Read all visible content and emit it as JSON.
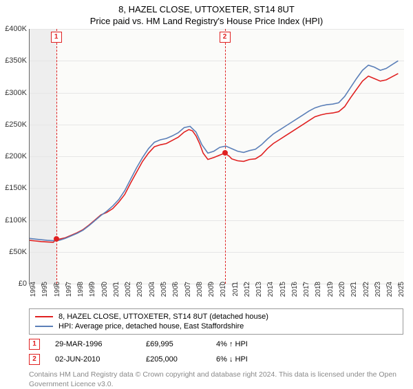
{
  "title": "8, HAZEL CLOSE, UTTOXETER, ST14 8UT",
  "subtitle": "Price paid vs. HM Land Registry's House Price Index (HPI)",
  "chart": {
    "type": "line",
    "background_color": "#fbfbf9",
    "grid_color": "#e6e6e6",
    "axis_color": "#666666",
    "shade_color": "#eeeeee",
    "x_years": [
      1994,
      1995,
      1996,
      1997,
      1998,
      1999,
      2000,
      2001,
      2002,
      2003,
      2004,
      2005,
      2006,
      2007,
      2008,
      2009,
      2010,
      2011,
      2012,
      2013,
      2014,
      2015,
      2016,
      2017,
      2018,
      2019,
      2020,
      2021,
      2022,
      2023,
      2024,
      2025
    ],
    "xlim": [
      1994,
      2025.5
    ],
    "ylim": [
      0,
      400000
    ],
    "ytick_step": 50000,
    "yticks": [
      "£0",
      "£50K",
      "£100K",
      "£150K",
      "£200K",
      "£250K",
      "£300K",
      "£350K",
      "£400K"
    ],
    "label_fontsize": 11,
    "tick_fontsize": 10,
    "series": [
      {
        "name": "price_paid",
        "color": "#e02020",
        "width": 1.6,
        "legend": "8, HAZEL CLOSE, UTTOXETER, ST14 8UT (detached house)",
        "points": [
          [
            1994.0,
            68000
          ],
          [
            1994.5,
            67000
          ],
          [
            1995.0,
            66000
          ],
          [
            1995.5,
            65500
          ],
          [
            1996.0,
            65000
          ],
          [
            1996.24,
            69995
          ],
          [
            1996.5,
            70000
          ],
          [
            1997.0,
            72000
          ],
          [
            1997.5,
            76000
          ],
          [
            1998.0,
            80000
          ],
          [
            1998.5,
            85000
          ],
          [
            1999.0,
            92000
          ],
          [
            1999.5,
            100000
          ],
          [
            2000.0,
            108000
          ],
          [
            2000.5,
            112000
          ],
          [
            2001.0,
            118000
          ],
          [
            2001.5,
            128000
          ],
          [
            2002.0,
            140000
          ],
          [
            2002.5,
            158000
          ],
          [
            2003.0,
            175000
          ],
          [
            2003.5,
            192000
          ],
          [
            2004.0,
            205000
          ],
          [
            2004.5,
            215000
          ],
          [
            2005.0,
            218000
          ],
          [
            2005.5,
            220000
          ],
          [
            2006.0,
            225000
          ],
          [
            2006.5,
            230000
          ],
          [
            2007.0,
            238000
          ],
          [
            2007.4,
            242000
          ],
          [
            2007.7,
            240000
          ],
          [
            2008.0,
            232000
          ],
          [
            2008.3,
            220000
          ],
          [
            2008.6,
            205000
          ],
          [
            2009.0,
            195000
          ],
          [
            2009.5,
            198000
          ],
          [
            2010.0,
            202000
          ],
          [
            2010.42,
            205000
          ],
          [
            2010.8,
            200000
          ],
          [
            2011.0,
            196000
          ],
          [
            2011.5,
            193000
          ],
          [
            2012.0,
            192000
          ],
          [
            2012.5,
            195000
          ],
          [
            2013.0,
            196000
          ],
          [
            2013.5,
            202000
          ],
          [
            2014.0,
            212000
          ],
          [
            2014.5,
            220000
          ],
          [
            2015.0,
            226000
          ],
          [
            2015.5,
            232000
          ],
          [
            2016.0,
            238000
          ],
          [
            2016.5,
            244000
          ],
          [
            2017.0,
            250000
          ],
          [
            2017.5,
            256000
          ],
          [
            2018.0,
            262000
          ],
          [
            2018.5,
            265000
          ],
          [
            2019.0,
            267000
          ],
          [
            2019.5,
            268000
          ],
          [
            2020.0,
            270000
          ],
          [
            2020.5,
            278000
          ],
          [
            2021.0,
            292000
          ],
          [
            2021.5,
            305000
          ],
          [
            2022.0,
            318000
          ],
          [
            2022.5,
            326000
          ],
          [
            2023.0,
            322000
          ],
          [
            2023.5,
            318000
          ],
          [
            2024.0,
            320000
          ],
          [
            2024.5,
            325000
          ],
          [
            2025.0,
            330000
          ]
        ]
      },
      {
        "name": "hpi",
        "color": "#5b7fb8",
        "width": 1.6,
        "legend": "HPI: Average price, detached house, East Staffordshire",
        "points": [
          [
            1994.0,
            71000
          ],
          [
            1994.5,
            70000
          ],
          [
            1995.0,
            69000
          ],
          [
            1995.5,
            68000
          ],
          [
            1996.0,
            67500
          ],
          [
            1996.5,
            68000
          ],
          [
            1997.0,
            71000
          ],
          [
            1997.5,
            75000
          ],
          [
            1998.0,
            79000
          ],
          [
            1998.5,
            84000
          ],
          [
            1999.0,
            91000
          ],
          [
            1999.5,
            99000
          ],
          [
            2000.0,
            107000
          ],
          [
            2000.5,
            114000
          ],
          [
            2001.0,
            122000
          ],
          [
            2001.5,
            132000
          ],
          [
            2002.0,
            146000
          ],
          [
            2002.5,
            164000
          ],
          [
            2003.0,
            182000
          ],
          [
            2003.5,
            198000
          ],
          [
            2004.0,
            212000
          ],
          [
            2004.5,
            222000
          ],
          [
            2005.0,
            226000
          ],
          [
            2005.5,
            228000
          ],
          [
            2006.0,
            232000
          ],
          [
            2006.5,
            237000
          ],
          [
            2007.0,
            245000
          ],
          [
            2007.5,
            247000
          ],
          [
            2008.0,
            238000
          ],
          [
            2008.5,
            218000
          ],
          [
            2009.0,
            205000
          ],
          [
            2009.5,
            208000
          ],
          [
            2010.0,
            214000
          ],
          [
            2010.5,
            216000
          ],
          [
            2011.0,
            212000
          ],
          [
            2011.5,
            208000
          ],
          [
            2012.0,
            206000
          ],
          [
            2012.5,
            209000
          ],
          [
            2013.0,
            211000
          ],
          [
            2013.5,
            218000
          ],
          [
            2014.0,
            227000
          ],
          [
            2014.5,
            235000
          ],
          [
            2015.0,
            241000
          ],
          [
            2015.5,
            247000
          ],
          [
            2016.0,
            253000
          ],
          [
            2016.5,
            259000
          ],
          [
            2017.0,
            265000
          ],
          [
            2017.5,
            271000
          ],
          [
            2018.0,
            276000
          ],
          [
            2018.5,
            279000
          ],
          [
            2019.0,
            281000
          ],
          [
            2019.5,
            282000
          ],
          [
            2020.0,
            284000
          ],
          [
            2020.5,
            294000
          ],
          [
            2021.0,
            308000
          ],
          [
            2021.5,
            322000
          ],
          [
            2022.0,
            335000
          ],
          [
            2022.5,
            343000
          ],
          [
            2023.0,
            340000
          ],
          [
            2023.5,
            335000
          ],
          [
            2024.0,
            338000
          ],
          [
            2024.5,
            344000
          ],
          [
            2025.0,
            350000
          ]
        ]
      }
    ],
    "shaded": {
      "from": 1994.0,
      "to": 1996.24
    },
    "markers": [
      {
        "num": "1",
        "x": 1996.24,
        "y": 69995,
        "color": "#e02020"
      },
      {
        "num": "2",
        "x": 2010.42,
        "y": 205000,
        "color": "#e02020"
      }
    ]
  },
  "legend_box": {
    "border_color": "#999999"
  },
  "sales": [
    {
      "num": "1",
      "date": "29-MAR-1996",
      "price": "£69,995",
      "diff": "4% ↑ HPI",
      "arrow": "↑",
      "arrow_color": "#1a8f1a"
    },
    {
      "num": "2",
      "date": "02-JUN-2010",
      "price": "£205,000",
      "diff": "6% ↓ HPI",
      "arrow": "↓",
      "arrow_color": "#c03030"
    }
  ],
  "attribution": "Contains HM Land Registry data © Crown copyright and database right 2024. This data is licensed under the Open Government Licence v3.0."
}
